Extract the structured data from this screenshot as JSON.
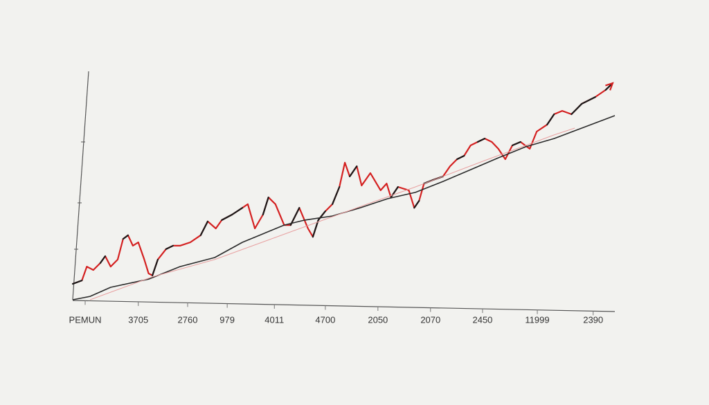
{
  "chart_data": {
    "type": "line",
    "xlim": [
      0,
      100
    ],
    "ylim": [
      0,
      100
    ],
    "xticks": [
      {
        "value": 2.3,
        "label": "PEMUN"
      },
      {
        "value": 12.1,
        "label": "3705"
      },
      {
        "value": 21.2,
        "label": "2760"
      },
      {
        "value": 28.5,
        "label": "979"
      },
      {
        "value": 37.2,
        "label": "4011"
      },
      {
        "value": 46.6,
        "label": "4700"
      },
      {
        "value": 56.3,
        "label": "2050"
      },
      {
        "value": 66.0,
        "label": "2070"
      },
      {
        "value": 75.6,
        "label": "2450"
      },
      {
        "value": 85.7,
        "label": "11999"
      },
      {
        "value": 96.0,
        "label": "2390"
      }
    ],
    "series": [
      {
        "color": "#d42020",
        "up_color": "#1a1a1a",
        "arrow": true,
        "x": [
          0,
          1.7,
          2.6,
          3.8,
          5.1,
          6.0,
          7.0,
          8.3,
          9.3,
          10.2,
          11.1,
          12.1,
          13.2,
          14.0,
          14.7,
          15.7,
          17.2,
          18.5,
          19.8,
          21.7,
          23.6,
          24.9,
          26.4,
          27.5,
          29.4,
          31.3,
          32.3,
          33.6,
          35.1,
          36.1,
          37.4,
          39.0,
          40.2,
          41.8,
          43.4,
          44.3,
          45.3,
          46.6,
          47.9,
          49.2,
          50.2,
          51.1,
          52.4,
          53.3,
          54.9,
          56.8,
          57.9,
          58.7,
          60.0,
          62.0,
          63.0,
          63.9,
          64.8,
          66.4,
          68.3,
          69.6,
          70.9,
          72.2,
          73.4,
          74.7,
          76.0,
          77.3,
          78.5,
          79.8,
          81.1,
          82.6,
          84.3,
          85.6,
          87.5,
          88.8,
          90.3,
          92.0,
          93.9,
          96.4,
          98.3,
          99.6
        ],
        "values": [
          7.0,
          8.5,
          14.6,
          13.1,
          16.2,
          19.2,
          14.6,
          17.7,
          26.8,
          28.4,
          23.8,
          25.3,
          17.7,
          11.6,
          10.7,
          17.7,
          22.3,
          23.8,
          23.8,
          25.3,
          28.4,
          34.5,
          31.4,
          35.1,
          37.5,
          40.5,
          42.1,
          31.4,
          37.5,
          45.1,
          42.1,
          32.9,
          32.9,
          40.5,
          31.4,
          27.7,
          35.1,
          39.0,
          42.1,
          49.7,
          60.4,
          54.3,
          58.8,
          50.3,
          55.8,
          48.2,
          51.2,
          45.1,
          49.7,
          48.2,
          40.5,
          43.6,
          51.2,
          52.7,
          54.3,
          58.8,
          61.9,
          63.4,
          68.0,
          69.5,
          71.0,
          69.5,
          66.5,
          61.9,
          68.0,
          69.5,
          66.5,
          74.1,
          77.1,
          81.7,
          83.2,
          81.7,
          86.3,
          89.3,
          92.4,
          95.4
        ]
      },
      {
        "color": "#2a2a2a",
        "x": [
          0,
          3.2,
          7.0,
          14.0,
          19.8,
          26.2,
          31.3,
          39.0,
          42.8,
          47.9,
          53.0,
          58.1,
          63.2,
          68.3,
          73.4,
          78.5,
          83.6,
          88.8,
          100
        ],
        "values": [
          0,
          1.5,
          5.5,
          9.1,
          14.6,
          18.6,
          25.3,
          32.9,
          35.1,
          36.9,
          40.5,
          44.5,
          47.3,
          52.1,
          57.3,
          62.5,
          67.4,
          71.0,
          81.1
        ]
      },
      {
        "color": "#e8a0a0",
        "x": [
          3.2,
          14.7,
          26.2,
          40.2,
          54.3,
          63.2,
          76.0,
          88.8,
          92.6
        ],
        "values": [
          0,
          10.1,
          17.7,
          29.9,
          42.1,
          49.7,
          61.3,
          72.6,
          75.6
        ]
      }
    ]
  }
}
